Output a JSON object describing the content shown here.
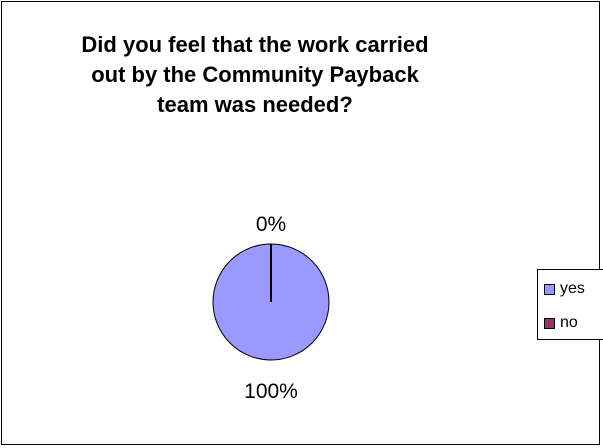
{
  "chart_data": {
    "type": "pie",
    "title_lines": [
      "Did you feel that the work carried",
      "out by the Community Payback",
      "team was needed?"
    ],
    "categories": [
      "yes",
      "no"
    ],
    "values": [
      100,
      0
    ],
    "data_labels": [
      "100%",
      "0%"
    ],
    "colors": [
      "#9999FF",
      "#993366"
    ],
    "legend_placement": "right"
  }
}
